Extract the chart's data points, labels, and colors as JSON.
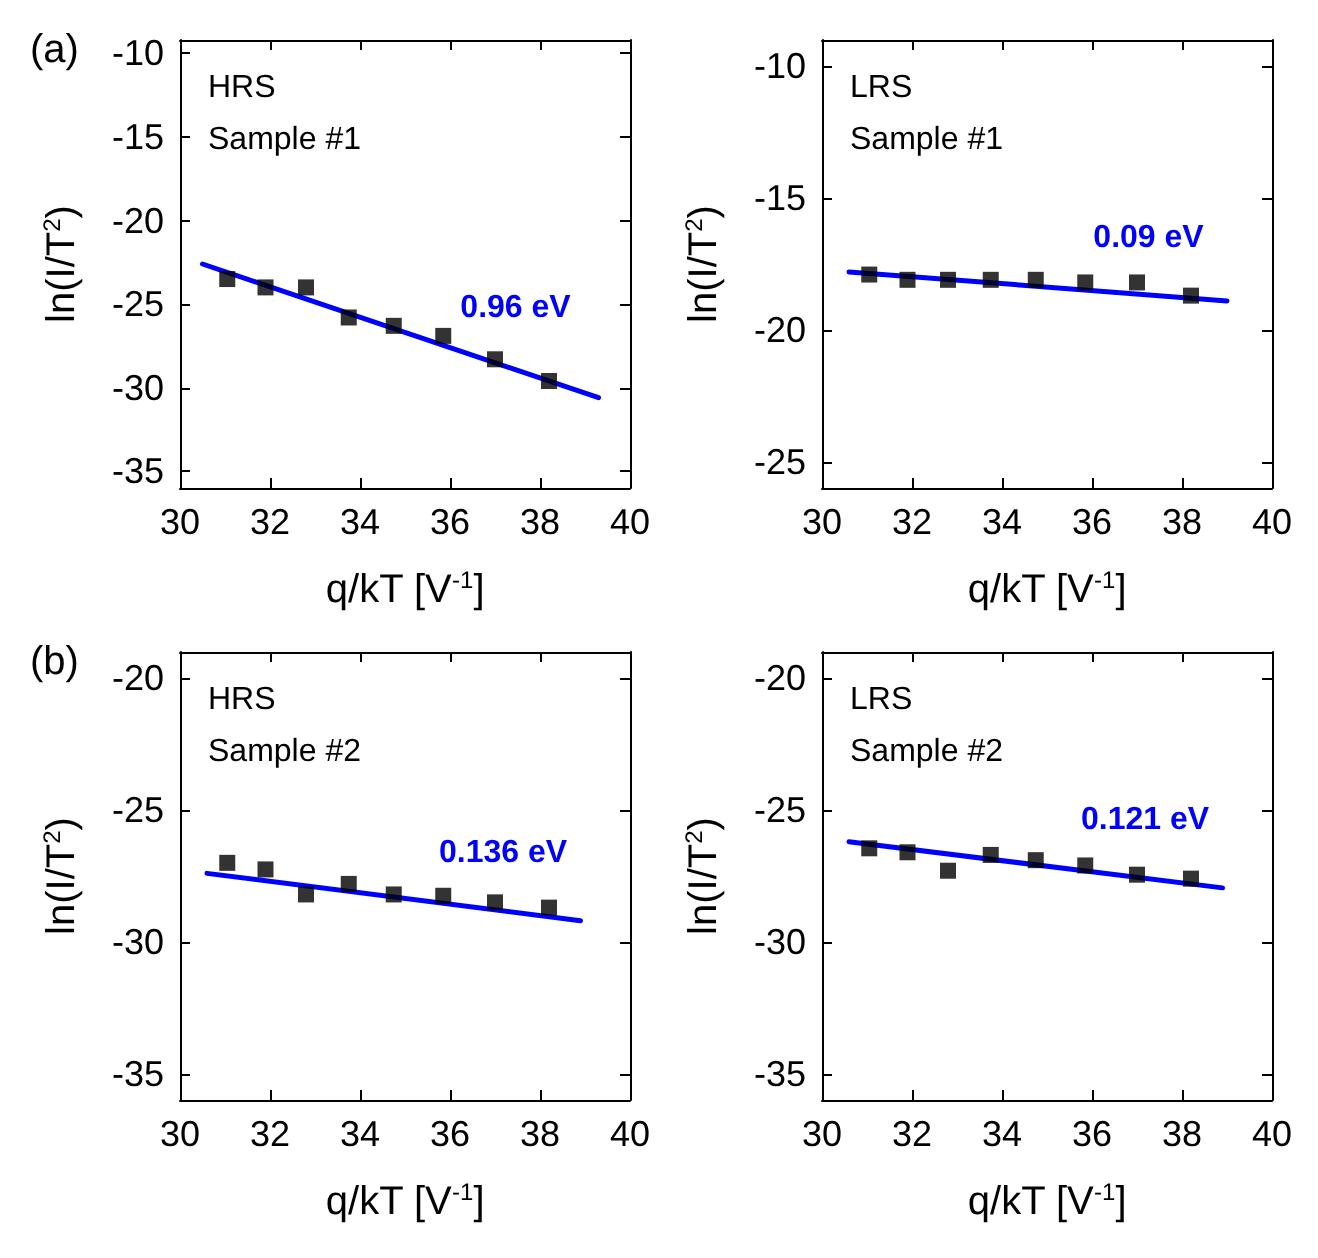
{
  "chart_data": [
    {
      "type": "scatter",
      "title": "(a)",
      "xlabel": "q/kT [V$^{-1}$]",
      "ylabel": "ln(I/T$^{2}$)",
      "annotations": [
        "HRS",
        "Sample #1",
        "0.96 eV"
      ],
      "xlim": [
        30,
        40
      ],
      "xticks": [
        30,
        32,
        34,
        36,
        38,
        40
      ],
      "ylim": [
        -36,
        -9.2
      ],
      "yticks": [
        -35,
        -30,
        -25,
        -20,
        -15,
        -10
      ],
      "grid": false,
      "series": [
        {
          "marker": "square",
          "color": "#000000",
          "x": [
            31.05,
            31.9,
            32.8,
            33.75,
            34.75,
            35.85,
            37.0,
            38.2
          ],
          "values": [
            -23.5,
            -24.0,
            -24.0,
            -25.8,
            -26.3,
            -26.9,
            -28.3,
            -29.6
          ]
        },
        {
          "type": "line",
          "marker": "none",
          "color": "#0000ff",
          "x": [
            30.5,
            39.3
          ],
          "values": [
            -22.6,
            -30.6
          ]
        }
      ]
    },
    {
      "type": "scatter",
      "xlabel": "q/kT [V$^{-1}$]",
      "ylabel": "ln(I/T$^{2}$)",
      "annotations": [
        "LRS",
        "Sample #1",
        "0.09 eV"
      ],
      "xlim": [
        30,
        40
      ],
      "xticks": [
        30,
        32,
        34,
        36,
        38,
        40
      ],
      "ylim": [
        -26,
        -9
      ],
      "yticks": [
        -25,
        -20,
        -15,
        -10
      ],
      "grid": false,
      "series": [
        {
          "marker": "square",
          "color": "#000000",
          "x": [
            31.05,
            31.9,
            32.8,
            33.75,
            34.75,
            35.85,
            37.0,
            38.2
          ],
          "values": [
            -17.9,
            -18.1,
            -18.1,
            -18.1,
            -18.1,
            -18.2,
            -18.2,
            -18.7
          ]
        },
        {
          "type": "line",
          "marker": "none",
          "color": "#0000ff",
          "x": [
            30.6,
            39.0
          ],
          "values": [
            -17.8,
            -18.9
          ]
        }
      ]
    },
    {
      "type": "scatter",
      "title": "(b)",
      "xlabel": "q/kT [V$^{-1}$]",
      "ylabel": "ln(I/T$^{2}$)",
      "annotations": [
        "HRS",
        "Sample #2",
        "0.136 eV"
      ],
      "xlim": [
        30,
        40
      ],
      "xticks": [
        30,
        32,
        34,
        36,
        38,
        40
      ],
      "ylim": [
        -36,
        -19
      ],
      "yticks": [
        -35,
        -30,
        -25,
        -20
      ],
      "grid": false,
      "series": [
        {
          "marker": "square",
          "color": "#000000",
          "x": [
            31.05,
            31.9,
            32.8,
            33.75,
            34.75,
            35.85,
            37.0,
            38.2
          ],
          "values": [
            -27.0,
            -27.25,
            -28.2,
            -27.8,
            -28.2,
            -28.25,
            -28.5,
            -28.7
          ]
        },
        {
          "type": "line",
          "marker": "none",
          "color": "#0000ff",
          "x": [
            30.6,
            38.9
          ],
          "values": [
            -27.4,
            -29.2
          ]
        }
      ]
    },
    {
      "type": "scatter",
      "xlabel": "q/kT [V$^{-1}$]",
      "ylabel": "ln(I/T$^{2}$)",
      "annotations": [
        "LRS",
        "Sample #2",
        "0.121 eV"
      ],
      "xlim": [
        30,
        40
      ],
      "xticks": [
        30,
        32,
        34,
        36,
        38,
        40
      ],
      "ylim": [
        -36,
        -19
      ],
      "yticks": [
        -35,
        -30,
        -25,
        -20
      ],
      "grid": false,
      "series": [
        {
          "marker": "square",
          "color": "#000000",
          "x": [
            31.05,
            31.9,
            32.8,
            33.75,
            34.75,
            35.85,
            37.0,
            38.2
          ],
          "values": [
            -26.45,
            -26.6,
            -27.3,
            -26.7,
            -26.9,
            -27.1,
            -27.45,
            -27.6
          ]
        },
        {
          "type": "line",
          "marker": "none",
          "color": "#0000ff",
          "x": [
            30.6,
            38.9
          ],
          "values": [
            -26.2,
            -27.95
          ]
        }
      ]
    }
  ]
}
